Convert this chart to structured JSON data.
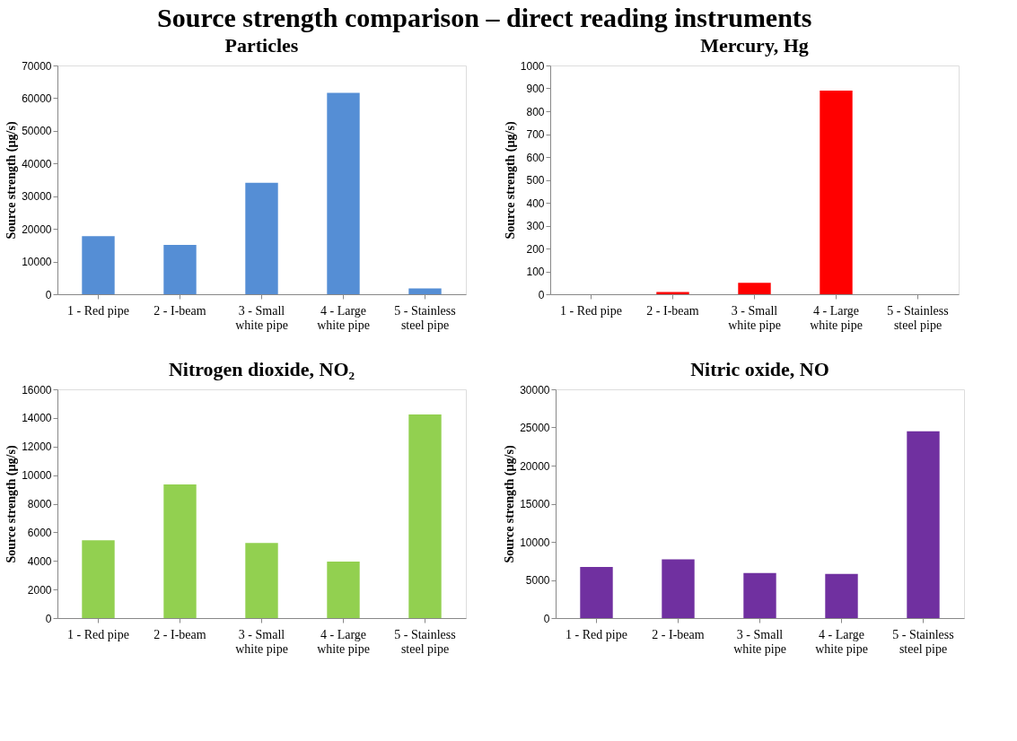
{
  "chart_data": [
    {
      "type": "other",
      "title": "Source strength comparison – direct reading instruments"
    },
    {
      "type": "bar",
      "title": "Particles",
      "ylabel": "Source strength (µg/s)",
      "categories": [
        "1 - Red pipe",
        "2 - I-beam",
        "3 - Small\nwhite pipe",
        "4 - Large\nwhite pipe",
        "5 - Stainless\nsteel pipe"
      ],
      "values": [
        17800,
        15100,
        34100,
        61600,
        1800
      ],
      "color": "#558ed5",
      "ylim": [
        0,
        70000
      ],
      "yticks": [
        0,
        10000,
        20000,
        30000,
        40000,
        50000,
        60000,
        70000
      ],
      "grid": false
    },
    {
      "type": "bar",
      "title": "Mercury, Hg",
      "ylabel": "Source strength (µg/s)",
      "categories": [
        "1 - Red pipe",
        "2 - I-beam",
        "3 - Small\nwhite pipe",
        "4 - Large\nwhite pipe",
        "5 - Stainless\nsteel pipe"
      ],
      "values": [
        0,
        10,
        50,
        890,
        0
      ],
      "color": "#ff0000",
      "ylim": [
        0,
        1000
      ],
      "yticks": [
        0,
        100,
        200,
        300,
        400,
        500,
        600,
        700,
        800,
        900,
        1000
      ],
      "grid": false
    },
    {
      "type": "bar",
      "title": "Nitrogen dioxide, NO₂",
      "ylabel": "Source strength (µg/s)",
      "categories": [
        "1 - Red pipe",
        "2 - I-beam",
        "3 - Small\nwhite pipe",
        "4 - Large\nwhite pipe",
        "5 - Stainless\nsteel pipe"
      ],
      "values": [
        5450,
        9350,
        5250,
        3950,
        14250
      ],
      "color": "#92d050",
      "ylim": [
        0,
        16000
      ],
      "yticks": [
        0,
        2000,
        4000,
        6000,
        8000,
        10000,
        12000,
        14000,
        16000
      ],
      "grid": false
    },
    {
      "type": "bar",
      "title": "Nitric oxide, NO",
      "ylabel": "Source strength (µg/s)",
      "categories": [
        "1 - Red pipe",
        "2 - I-beam",
        "3 - Small\nwhite pipe",
        "4 - Large\nwhite pipe",
        "5 - Stainless\nsteel pipe"
      ],
      "values": [
        6700,
        7700,
        5900,
        5800,
        24500
      ],
      "color": "#7030a0",
      "ylim": [
        0,
        30000
      ],
      "yticks": [
        0,
        5000,
        10000,
        15000,
        20000,
        25000,
        30000
      ],
      "grid": false
    }
  ]
}
